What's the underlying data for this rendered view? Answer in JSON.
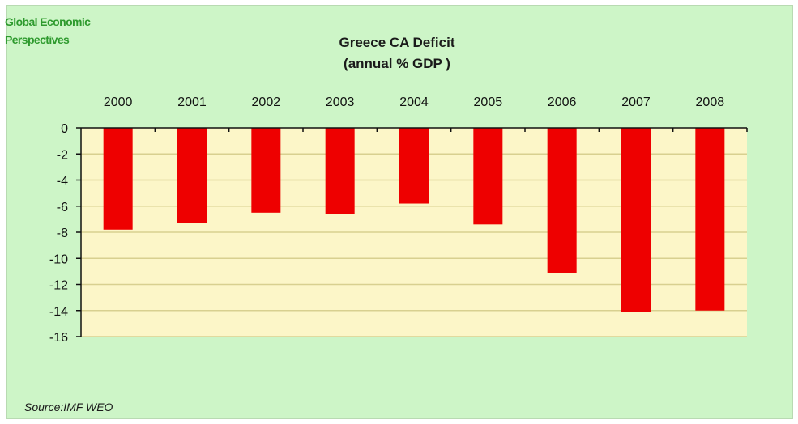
{
  "brand": {
    "line1": "Global Economic",
    "line2": "Perspectives"
  },
  "source": "Source:IMF WEO",
  "colors": {
    "background": "#cdf5c7",
    "plot_area": "#fcf6c8",
    "bar": "#ee0000",
    "grid": "#d8d090"
  },
  "chart_data": {
    "type": "bar",
    "title": "Greece  CA Deficit",
    "subtitle": "(annual % GDP )",
    "categories": [
      "2000",
      "2001",
      "2002",
      "2003",
      "2004",
      "2005",
      "2006",
      "2007",
      "2008"
    ],
    "values": [
      -7.8,
      -7.3,
      -6.5,
      -6.6,
      -5.8,
      -7.4,
      -11.1,
      -14.1,
      -14.0
    ],
    "ylim": [
      -16,
      0
    ],
    "yticks": [
      0,
      -2,
      -4,
      -6,
      -8,
      -10,
      -12,
      -14,
      -16
    ],
    "xaxis_position": "top",
    "grid": true,
    "legend": "none"
  }
}
